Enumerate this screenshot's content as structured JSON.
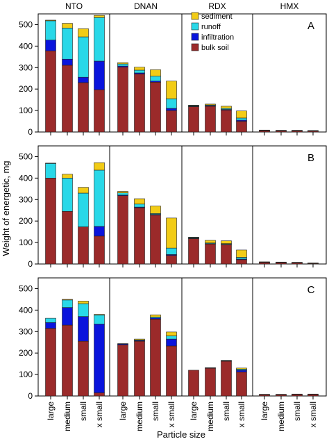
{
  "chart_data": {
    "type": "bar",
    "stacked": true,
    "figure": {
      "ylabel": "Weight of energetic, mg",
      "xlabel": "Particle size",
      "ylim": [
        0,
        550
      ],
      "yticks": [
        0,
        100,
        200,
        300,
        400,
        500
      ],
      "grid": false,
      "legend_placement": "top-right of panel A, within RDX group"
    },
    "groups": [
      "NTO",
      "DNAN",
      "RDX",
      "HMX"
    ],
    "categories": [
      "large",
      "medium",
      "small",
      "x small"
    ],
    "legend": [
      "sediment",
      "runoff",
      "infiltration",
      "bulk soil"
    ],
    "series_colors": {
      "bulk soil": "#9b2a2a",
      "infiltration": "#0a14dc",
      "runoff": "#29d8e8",
      "sediment": "#f2cc16"
    },
    "panels": [
      {
        "label": "A",
        "bars": {
          "NTO": [
            {
              "bulk soil": 378,
              "infiltration": 50,
              "runoff": 90,
              "sediment": 3
            },
            {
              "bulk soil": 311,
              "infiltration": 28,
              "runoff": 145,
              "sediment": 22
            },
            {
              "bulk soil": 230,
              "infiltration": 25,
              "runoff": 188,
              "sediment": 38
            },
            {
              "bulk soil": 197,
              "infiltration": 133,
              "runoff": 203,
              "sediment": 10
            }
          ],
          "DNAN": [
            {
              "bulk soil": 302,
              "infiltration": 5,
              "runoff": 10,
              "sediment": 6
            },
            {
              "bulk soil": 270,
              "infiltration": 5,
              "runoff": 13,
              "sediment": 14
            },
            {
              "bulk soil": 232,
              "infiltration": 5,
              "runoff": 23,
              "sediment": 30
            },
            {
              "bulk soil": 100,
              "infiltration": 10,
              "runoff": 45,
              "sediment": 82
            }
          ],
          "RDX": [
            {
              "bulk soil": 118,
              "infiltration": 2,
              "runoff": 3,
              "sediment": 2
            },
            {
              "bulk soil": 120,
              "infiltration": 3,
              "runoff": 3,
              "sediment": 4
            },
            {
              "bulk soil": 102,
              "infiltration": 3,
              "runoff": 5,
              "sediment": 10
            },
            {
              "bulk soil": 50,
              "infiltration": 5,
              "runoff": 10,
              "sediment": 33
            }
          ],
          "HMX": [
            {
              "bulk soil": 7,
              "infiltration": 0,
              "runoff": 1,
              "sediment": 1
            },
            {
              "bulk soil": 6,
              "infiltration": 0,
              "runoff": 1,
              "sediment": 1
            },
            {
              "bulk soil": 6,
              "infiltration": 0,
              "runoff": 1,
              "sediment": 1
            },
            {
              "bulk soil": 5,
              "infiltration": 0,
              "runoff": 1,
              "sediment": 1
            }
          ]
        }
      },
      {
        "label": "B",
        "bars": {
          "NTO": [
            {
              "bulk soil": 400,
              "infiltration": 0,
              "runoff": 68,
              "sediment": 2
            },
            {
              "bulk soil": 245,
              "infiltration": 0,
              "runoff": 155,
              "sediment": 18
            },
            {
              "bulk soil": 173,
              "infiltration": 0,
              "runoff": 157,
              "sediment": 27
            },
            {
              "bulk soil": 130,
              "infiltration": 45,
              "runoff": 262,
              "sediment": 35
            }
          ],
          "DNAN": [
            {
              "bulk soil": 318,
              "infiltration": 3,
              "runoff": 10,
              "sediment": 7
            },
            {
              "bulk soil": 262,
              "infiltration": 3,
              "runoff": 14,
              "sediment": 25
            },
            {
              "bulk soil": 228,
              "infiltration": 3,
              "runoff": 4,
              "sediment": 35
            },
            {
              "bulk soil": 40,
              "infiltration": 4,
              "runoff": 30,
              "sediment": 140
            }
          ],
          "RDX": [
            {
              "bulk soil": 118,
              "infiltration": 2,
              "runoff": 3,
              "sediment": 2
            },
            {
              "bulk soil": 93,
              "infiltration": 2,
              "runoff": 3,
              "sediment": 12
            },
            {
              "bulk soil": 90,
              "infiltration": 2,
              "runoff": 3,
              "sediment": 13
            },
            {
              "bulk soil": 20,
              "infiltration": 3,
              "runoff": 8,
              "sediment": 34
            }
          ],
          "HMX": [
            {
              "bulk soil": 8,
              "infiltration": 0,
              "runoff": 1,
              "sediment": 1
            },
            {
              "bulk soil": 7,
              "infiltration": 0,
              "runoff": 1,
              "sediment": 1
            },
            {
              "bulk soil": 6,
              "infiltration": 0,
              "runoff": 1,
              "sediment": 1
            },
            {
              "bulk soil": 3,
              "infiltration": 0,
              "runoff": 1,
              "sediment": 1
            }
          ]
        }
      },
      {
        "label": "C",
        "bars": {
          "NTO": [
            {
              "bulk soil": 315,
              "infiltration": 27,
              "runoff": 20,
              "sediment": 0
            },
            {
              "bulk soil": 330,
              "infiltration": 82,
              "runoff": 35,
              "sediment": 3
            },
            {
              "bulk soil": 255,
              "infiltration": 115,
              "runoff": 60,
              "sediment": 12
            },
            {
              "bulk soil": 15,
              "infiltration": 320,
              "runoff": 42,
              "sediment": 3
            }
          ],
          "DNAN": [
            {
              "bulk soil": 238,
              "infiltration": 4,
              "runoff": 2,
              "sediment": 0
            },
            {
              "bulk soil": 255,
              "infiltration": 3,
              "runoff": 3,
              "sediment": 4
            },
            {
              "bulk soil": 358,
              "infiltration": 5,
              "runoff": 5,
              "sediment": 10
            },
            {
              "bulk soil": 233,
              "infiltration": 32,
              "runoff": 15,
              "sediment": 18
            }
          ],
          "RDX": [
            {
              "bulk soil": 120,
              "infiltration": 0,
              "runoff": 0,
              "sediment": 0
            },
            {
              "bulk soil": 130,
              "infiltration": 1,
              "runoff": 1,
              "sediment": 0
            },
            {
              "bulk soil": 162,
              "infiltration": 2,
              "runoff": 2,
              "sediment": 0
            },
            {
              "bulk soil": 112,
              "infiltration": 8,
              "runoff": 5,
              "sediment": 5
            }
          ],
          "HMX": [
            {
              "bulk soil": 7,
              "infiltration": 0,
              "runoff": 0,
              "sediment": 1
            },
            {
              "bulk soil": 7,
              "infiltration": 0,
              "runoff": 0,
              "sediment": 1
            },
            {
              "bulk soil": 8,
              "infiltration": 0,
              "runoff": 0,
              "sediment": 1
            },
            {
              "bulk soil": 8,
              "infiltration": 0,
              "runoff": 0,
              "sediment": 1
            }
          ]
        }
      }
    ]
  }
}
